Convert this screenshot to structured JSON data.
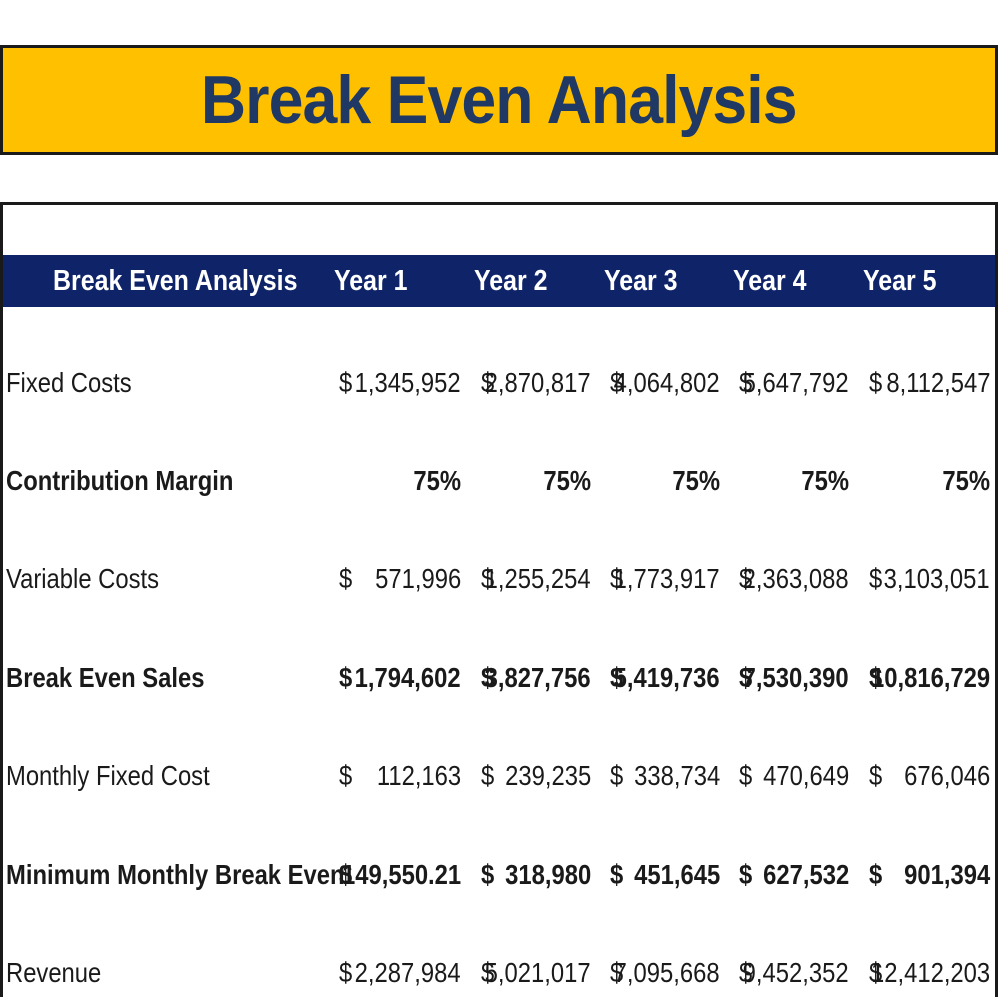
{
  "page": {
    "title": "Break Even Analysis"
  },
  "table": {
    "header": {
      "label": "Break Even Analysis",
      "years": [
        "Year 1",
        "Year 2",
        "Year 3",
        "Year 4",
        "Year 5"
      ]
    },
    "rows": [
      {
        "label": "Fixed Costs",
        "bold": false,
        "values": [
          {
            "cur": "$",
            "num": "1,345,952"
          },
          {
            "cur": "$",
            "num": "2,870,817"
          },
          {
            "cur": "$",
            "num": "4,064,802"
          },
          {
            "cur": "$",
            "num": "5,647,792"
          },
          {
            "cur": "$",
            "num": "8,112,547"
          }
        ]
      },
      {
        "label": "Contribution Margin",
        "bold": true,
        "values": [
          {
            "cur": "",
            "num": "75%"
          },
          {
            "cur": "",
            "num": "75%"
          },
          {
            "cur": "",
            "num": "75%"
          },
          {
            "cur": "",
            "num": "75%"
          },
          {
            "cur": "",
            "num": "75%"
          }
        ]
      },
      {
        "label": "Variable Costs",
        "bold": false,
        "values": [
          {
            "cur": "$",
            "num": "571,996"
          },
          {
            "cur": "$",
            "num": "1,255,254"
          },
          {
            "cur": "$",
            "num": "1,773,917"
          },
          {
            "cur": "$",
            "num": "2,363,088"
          },
          {
            "cur": "$",
            "num": "3,103,051"
          }
        ]
      },
      {
        "label": "Break Even Sales",
        "bold": true,
        "values": [
          {
            "cur": "$",
            "num": "1,794,602"
          },
          {
            "cur": "$",
            "num": "3,827,756"
          },
          {
            "cur": "$",
            "num": "5,419,736"
          },
          {
            "cur": "$",
            "num": "7,530,390"
          },
          {
            "cur": "$",
            "num": "10,816,729"
          }
        ]
      },
      {
        "label": "Monthly Fixed Cost",
        "bold": false,
        "values": [
          {
            "cur": "$",
            "num": "112,163"
          },
          {
            "cur": "$",
            "num": "239,235"
          },
          {
            "cur": "$",
            "num": "338,734"
          },
          {
            "cur": "$",
            "num": "470,649"
          },
          {
            "cur": "$",
            "num": "676,046"
          }
        ]
      },
      {
        "label": "Minimum Monthly Break Even",
        "bold": true,
        "values": [
          {
            "cur": "$",
            "num": "149,550.21"
          },
          {
            "cur": "$",
            "num": "318,980"
          },
          {
            "cur": "$",
            "num": "451,645"
          },
          {
            "cur": "$",
            "num": "627,532"
          },
          {
            "cur": "$",
            "num": "901,394"
          }
        ]
      },
      {
        "label": "Revenue",
        "bold": false,
        "values": [
          {
            "cur": "$",
            "num": "2,287,984"
          },
          {
            "cur": "$",
            "num": "5,021,017"
          },
          {
            "cur": "$",
            "num": "7,095,668"
          },
          {
            "cur": "$",
            "num": "9,452,352"
          },
          {
            "cur": "$",
            "num": "12,412,203"
          }
        ]
      }
    ]
  },
  "colors": {
    "banner": "#FFC000",
    "title_text": "#1F3864",
    "header_bg": "#0F2468",
    "header_text": "#ffffff"
  }
}
